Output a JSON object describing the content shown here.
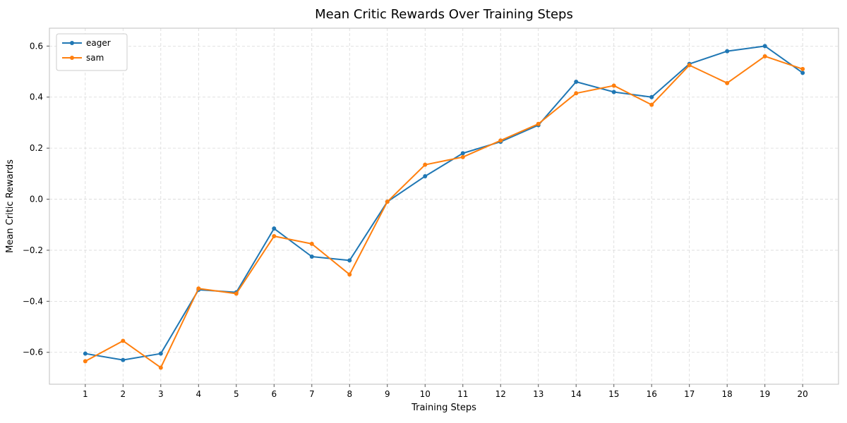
{
  "chart_data": {
    "type": "line",
    "title": "Mean Critic Rewards Over Training Steps",
    "xlabel": "Training Steps",
    "ylabel": "Mean Critic Rewards",
    "x": [
      1,
      2,
      3,
      4,
      5,
      6,
      7,
      8,
      9,
      10,
      11,
      12,
      13,
      14,
      15,
      16,
      17,
      18,
      19,
      20
    ],
    "series": [
      {
        "name": "eager",
        "color": "#1f77b4",
        "values": [
          -0.605,
          -0.63,
          -0.605,
          -0.355,
          -0.365,
          -0.115,
          -0.225,
          -0.24,
          -0.01,
          0.09,
          0.18,
          0.225,
          0.29,
          0.46,
          0.42,
          0.4,
          0.53,
          0.58,
          0.6,
          0.495
        ]
      },
      {
        "name": "sam",
        "color": "#ff7f0e",
        "values": [
          -0.635,
          -0.555,
          -0.66,
          -0.35,
          -0.37,
          -0.145,
          -0.175,
          -0.295,
          -0.01,
          0.135,
          0.165,
          0.23,
          0.295,
          0.415,
          0.445,
          0.37,
          0.525,
          0.455,
          0.56,
          0.51
        ]
      }
    ],
    "xticks": [
      1,
      2,
      3,
      4,
      5,
      6,
      7,
      8,
      9,
      10,
      11,
      12,
      13,
      14,
      15,
      16,
      17,
      18,
      19,
      20
    ],
    "yticks": [
      -0.6,
      -0.4,
      -0.2,
      0.0,
      0.2,
      0.4,
      0.6
    ],
    "ytick_labels": [
      "−0.6",
      "−0.4",
      "−0.2",
      "0.0",
      "0.2",
      "0.4",
      "0.6"
    ],
    "xlim": [
      0.05,
      20.95
    ],
    "ylim": [
      -0.725,
      0.67
    ],
    "grid": true,
    "grid_color": "#cfcfcf",
    "legend_position": "upper left",
    "legend_entries": [
      "eager",
      "sam"
    ]
  }
}
